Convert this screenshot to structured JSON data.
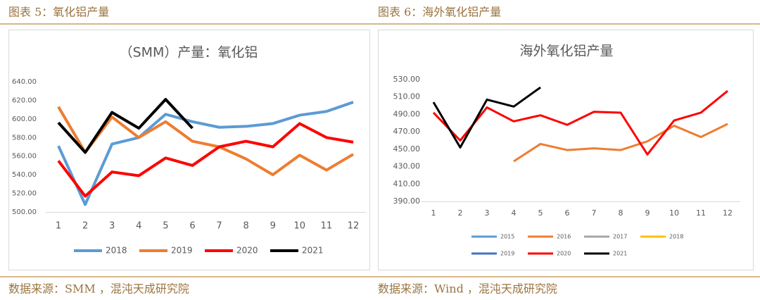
{
  "figures": [
    {
      "caption": "图表 5：氧化铝产量",
      "source": "数据来源：SMM ，混沌天成研究院"
    },
    {
      "caption": "图表 6：海外氧化铝产量",
      "source": "数据来源：Wind ，混沌天成研究院"
    }
  ],
  "chart_data": [
    {
      "type": "line",
      "title": "（SMM）产量：氧化铝",
      "categories": [
        "1",
        "2",
        "3",
        "4",
        "5",
        "6",
        "7",
        "8",
        "9",
        "10",
        "11",
        "12"
      ],
      "ylim": [
        500,
        640
      ],
      "yticks": [
        {
          "value": 500,
          "label": "500.00"
        },
        {
          "value": 520,
          "label": "520.00"
        },
        {
          "value": 540,
          "label": "540.00"
        },
        {
          "value": 560,
          "label": "560.00"
        },
        {
          "value": 580,
          "label": "580.00"
        },
        {
          "value": 600,
          "label": "600.00"
        },
        {
          "value": 620,
          "label": "620.00"
        },
        {
          "value": 640,
          "label": "640.00"
        }
      ],
      "grid": false,
      "legend": "bottom",
      "series": [
        {
          "name": "2018",
          "color": "#5b9bd5",
          "values": [
            571,
            508,
            573,
            580,
            605,
            597,
            591,
            592,
            595,
            604,
            608,
            618
          ]
        },
        {
          "name": "2019",
          "color": "#ed7d31",
          "values": [
            613,
            564,
            602,
            580,
            597,
            576,
            570,
            557,
            540,
            561,
            545,
            562
          ]
        },
        {
          "name": "2020",
          "color": "#ff0000",
          "values": [
            555,
            517,
            543,
            539,
            558,
            550,
            570,
            576,
            570,
            595,
            580,
            575
          ]
        },
        {
          "name": "2021",
          "color": "#000000",
          "values": [
            596,
            564,
            607,
            590,
            621,
            590,
            null,
            null,
            null,
            null,
            null,
            null
          ]
        }
      ]
    },
    {
      "type": "line",
      "title": "海外氧化铝产量",
      "categories": [
        "1",
        "2",
        "3",
        "4",
        "5",
        "6",
        "7",
        "8",
        "9",
        "10",
        "11",
        "12"
      ],
      "ylim": [
        390,
        530
      ],
      "yticks": [
        {
          "value": 390,
          "label": "390.00"
        },
        {
          "value": 410,
          "label": "410.00"
        },
        {
          "value": 430,
          "label": "430.00"
        },
        {
          "value": 450,
          "label": "450.00"
        },
        {
          "value": 470,
          "label": "470.00"
        },
        {
          "value": 490,
          "label": "490.00"
        },
        {
          "value": 510,
          "label": "510.00"
        },
        {
          "value": 530,
          "label": "530.00"
        }
      ],
      "grid": false,
      "legend": "bottom",
      "series": [
        {
          "name": "2015",
          "color": "#5b9bd5",
          "values": [
            null,
            null,
            null,
            null,
            null,
            null,
            null,
            null,
            null,
            null,
            null,
            null
          ]
        },
        {
          "name": "2016",
          "color": "#ed7d31",
          "values": [
            null,
            null,
            null,
            436,
            456,
            449,
            451,
            449,
            459,
            477,
            464,
            479
          ]
        },
        {
          "name": "2017",
          "color": "#a5a5a5",
          "values": [
            null,
            null,
            null,
            null,
            null,
            null,
            null,
            null,
            null,
            null,
            null,
            null
          ]
        },
        {
          "name": "2018",
          "color": "#ffc000",
          "values": [
            null,
            null,
            null,
            null,
            null,
            null,
            null,
            null,
            null,
            null,
            null,
            null
          ]
        },
        {
          "name": "2019",
          "color": "#4472c4",
          "values": [
            null,
            null,
            null,
            null,
            null,
            null,
            null,
            null,
            null,
            null,
            null,
            null
          ]
        },
        {
          "name": "2020",
          "color": "#ff0000",
          "values": [
            492,
            460,
            498,
            482,
            489,
            478,
            493,
            492,
            444,
            483,
            492,
            517
          ]
        },
        {
          "name": "2021",
          "color": "#000000",
          "values": [
            504,
            452,
            507,
            499,
            521,
            null,
            null,
            null,
            null,
            null,
            null,
            null
          ]
        }
      ]
    }
  ]
}
